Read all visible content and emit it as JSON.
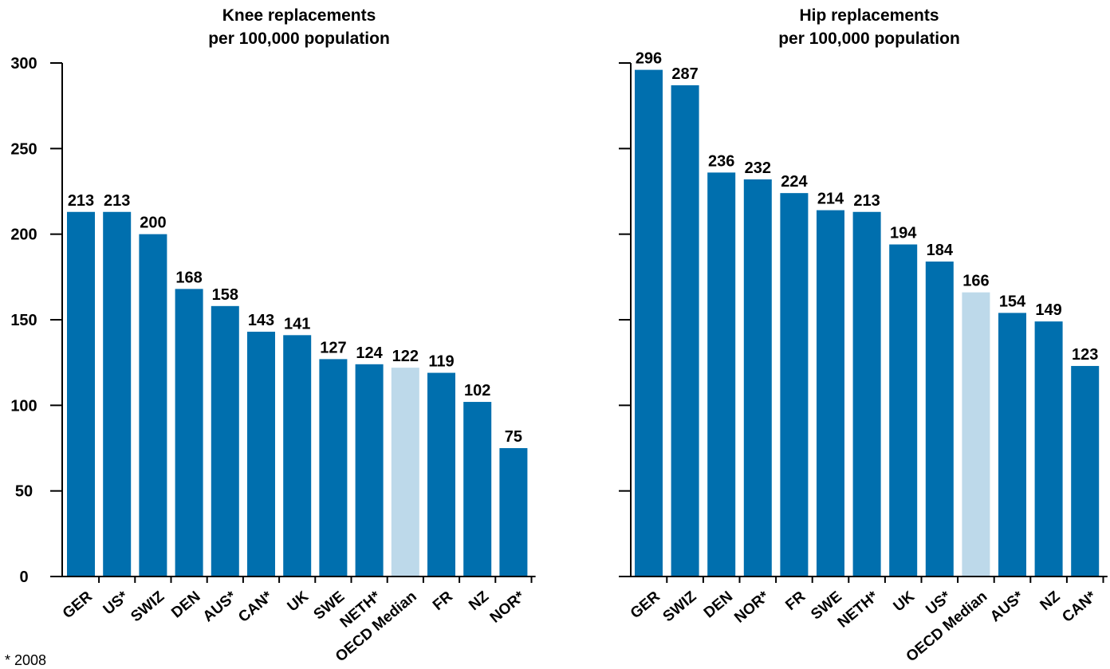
{
  "footnote": "* 2008",
  "colors": {
    "bar": "#006FAE",
    "median": "#BDD9EA"
  },
  "chart_data": [
    {
      "type": "bar",
      "title": [
        "Knee replacements",
        "per 100,000 population"
      ],
      "categories": [
        "GER",
        "US*",
        "SWIZ",
        "DEN",
        "AUS*",
        "CAN*",
        "UK",
        "SWE",
        "NETH*",
        "OECD Median",
        "FR",
        "NZ",
        "NOR*"
      ],
      "values": [
        213,
        213,
        200,
        168,
        158,
        143,
        141,
        127,
        124,
        122,
        119,
        102,
        75
      ],
      "highlight": "OECD Median",
      "ylim": [
        0,
        300
      ],
      "yticks": [
        0,
        50,
        100,
        150,
        200,
        250,
        300
      ],
      "show_ytick_labels": true,
      "grid": false
    },
    {
      "type": "bar",
      "title": [
        "Hip replacements",
        "per 100,000 population"
      ],
      "categories": [
        "GER",
        "SWIZ",
        "DEN",
        "NOR*",
        "FR",
        "SWE",
        "NETH*",
        "UK",
        "US*",
        "OECD Median",
        "AUS*",
        "NZ",
        "CAN*"
      ],
      "values": [
        296,
        287,
        236,
        232,
        224,
        214,
        213,
        194,
        184,
        166,
        154,
        149,
        123
      ],
      "highlight": "OECD Median",
      "ylim": [
        0,
        300
      ],
      "yticks": [
        0,
        50,
        100,
        150,
        200,
        250,
        300
      ],
      "show_ytick_labels": false,
      "grid": false
    }
  ]
}
